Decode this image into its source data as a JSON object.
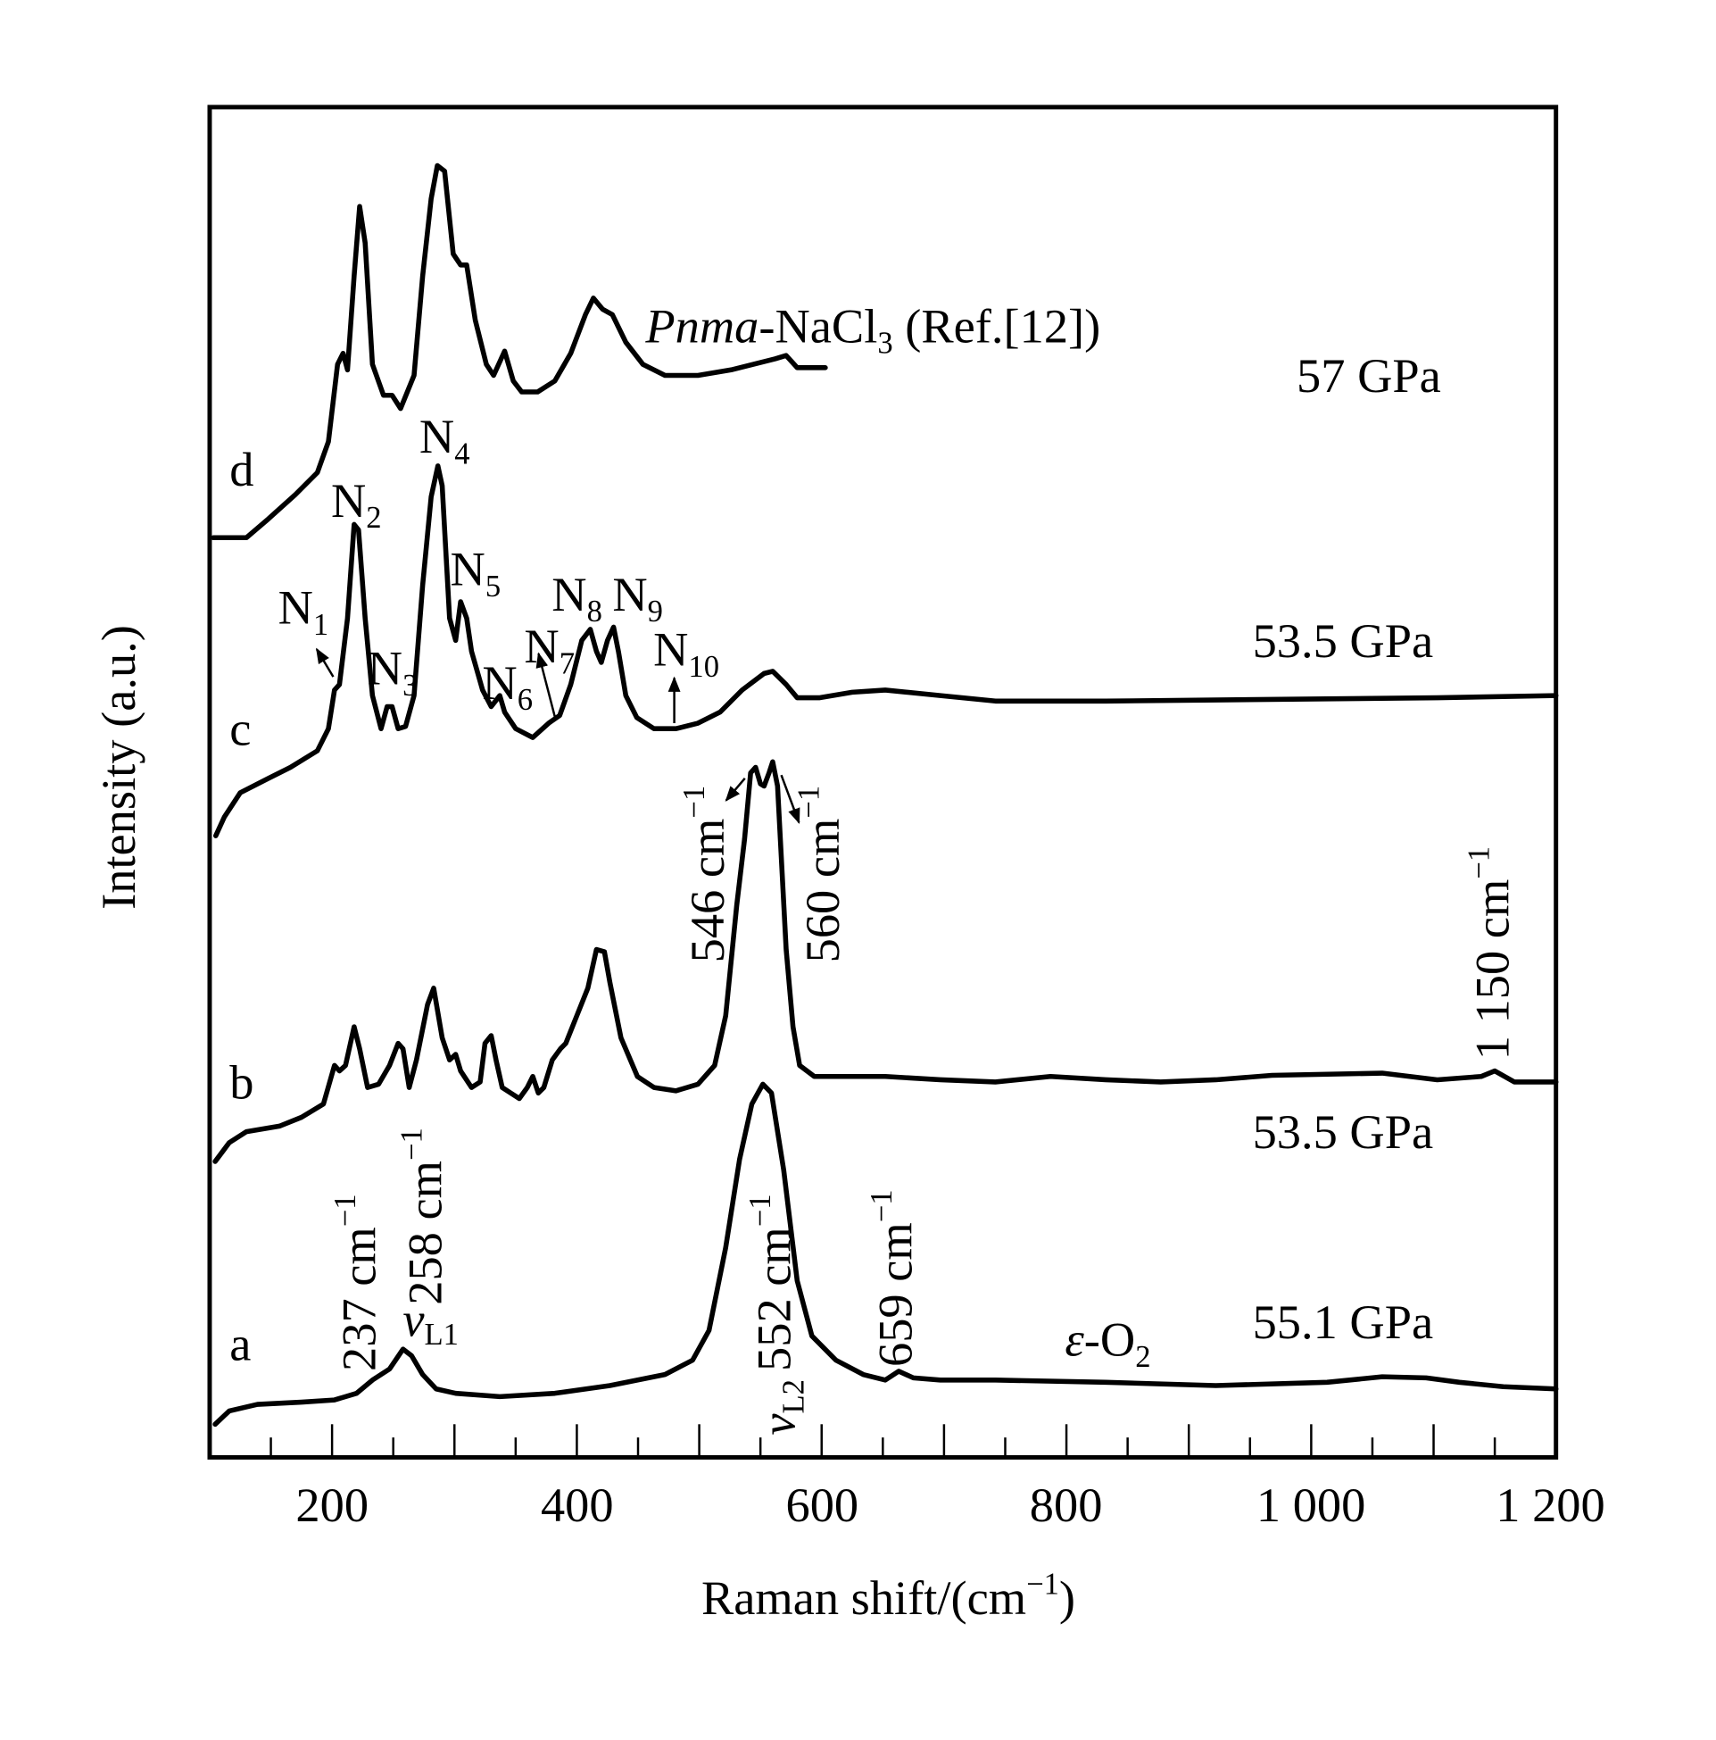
{
  "chart_data": {
    "type": "line",
    "title": "",
    "xlabel": {
      "main": "Raman shift/(cm",
      "sup": "−1",
      "end": ")"
    },
    "ylabel": "Intensity (a.u.)",
    "xlim": [
      100,
      1200
    ],
    "ylim": [
      0,
      122.3
    ],
    "x_ticks": [
      200,
      400,
      600,
      800,
      1000,
      1200
    ],
    "x_tick_labels": [
      "200",
      "400",
      "600",
      "800",
      "1 000",
      "1 200"
    ],
    "x_minor_step": 50,
    "grid": false,
    "line_color": "#000000",
    "series": [
      {
        "label": "d",
        "pressure": "57 GPa",
        "points": [
          [
            103,
            83.3
          ],
          [
            130,
            83.3
          ],
          [
            148,
            85
          ],
          [
            170,
            87.2
          ],
          [
            188,
            89.2
          ],
          [
            197,
            92
          ],
          [
            204.5,
            99
          ],
          [
            209,
            100
          ],
          [
            212.6,
            98.5
          ],
          [
            218,
            107
          ],
          [
            222.5,
            113.3
          ],
          [
            227,
            110
          ],
          [
            233,
            99
          ],
          [
            242,
            96.2
          ],
          [
            249,
            96.2
          ],
          [
            256,
            95
          ],
          [
            267,
            98
          ],
          [
            274,
            107
          ],
          [
            281,
            114
          ],
          [
            286,
            117
          ],
          [
            292,
            116.5
          ],
          [
            299,
            109
          ],
          [
            305,
            108
          ],
          [
            310,
            108
          ],
          [
            317,
            103
          ],
          [
            326,
            99
          ],
          [
            332,
            98
          ],
          [
            341,
            100.2
          ],
          [
            348,
            97.5
          ],
          [
            355,
            96.5
          ],
          [
            368,
            96.5
          ],
          [
            382,
            97.5
          ],
          [
            395,
            100
          ],
          [
            407,
            103.5
          ],
          [
            413.5,
            105
          ],
          [
            421,
            104
          ],
          [
            429,
            103.5
          ],
          [
            440,
            101
          ],
          [
            454,
            99
          ],
          [
            472,
            98
          ],
          [
            499,
            98
          ],
          [
            526,
            98.5
          ],
          [
            562,
            99.5
          ],
          [
            571,
            99.8
          ],
          [
            580,
            98.7
          ],
          [
            603,
            98.7
          ]
        ]
      },
      {
        "label": "c",
        "pressure": "53.5 GPa",
        "points": [
          [
            105,
            56.3
          ],
          [
            112,
            58
          ],
          [
            125,
            60.2
          ],
          [
            148,
            61.5
          ],
          [
            166,
            62.5
          ],
          [
            188,
            64
          ],
          [
            197,
            66
          ],
          [
            202,
            69.5
          ],
          [
            206,
            70
          ],
          [
            212.6,
            76
          ],
          [
            218,
            84.5
          ],
          [
            221.6,
            84
          ],
          [
            227,
            76
          ],
          [
            233,
            69
          ],
          [
            240,
            66
          ],
          [
            245,
            68
          ],
          [
            249,
            68
          ],
          [
            254,
            66
          ],
          [
            260,
            66.2
          ],
          [
            267,
            69
          ],
          [
            274,
            79
          ],
          [
            281,
            87
          ],
          [
            286.5,
            89.8
          ],
          [
            290,
            88
          ],
          [
            296,
            76
          ],
          [
            301,
            74
          ],
          [
            305,
            77.5
          ],
          [
            310,
            76
          ],
          [
            314,
            73
          ],
          [
            323,
            69.5
          ],
          [
            330,
            68
          ],
          [
            337,
            69
          ],
          [
            341,
            67.5
          ],
          [
            350,
            66
          ],
          [
            364,
            65.2
          ],
          [
            377,
            66.5
          ],
          [
            386,
            67.2
          ],
          [
            395,
            70
          ],
          [
            404,
            74
          ],
          [
            411,
            75
          ],
          [
            416,
            73
          ],
          [
            420,
            72
          ],
          [
            425,
            74
          ],
          [
            430,
            75.2
          ],
          [
            434,
            73
          ],
          [
            440,
            69
          ],
          [
            449,
            67
          ],
          [
            463,
            66
          ],
          [
            481,
            66
          ],
          [
            499,
            66.5
          ],
          [
            517,
            67.5
          ],
          [
            535,
            69.5
          ],
          [
            553,
            71
          ],
          [
            560,
            71.2
          ],
          [
            571,
            70
          ],
          [
            580,
            68.8
          ],
          [
            598,
            68.8
          ],
          [
            625,
            69.3
          ],
          [
            652,
            69.5
          ],
          [
            697,
            69
          ],
          [
            742,
            68.5
          ],
          [
            832,
            68.5
          ],
          [
            922,
            68.6
          ],
          [
            1012,
            68.7
          ],
          [
            1103,
            68.8
          ],
          [
            1200,
            69
          ]
        ]
      },
      {
        "label": "b",
        "pressure": "53.5 GPa",
        "points": [
          [
            104.5,
            26.8
          ],
          [
            116,
            28.5
          ],
          [
            130,
            29.5
          ],
          [
            157,
            30
          ],
          [
            175,
            30.8
          ],
          [
            193,
            32
          ],
          [
            202,
            35.5
          ],
          [
            206,
            35
          ],
          [
            211,
            35.5
          ],
          [
            218,
            39
          ],
          [
            222.5,
            37
          ],
          [
            229,
            33.5
          ],
          [
            238,
            33.8
          ],
          [
            247,
            35.5
          ],
          [
            254,
            37.5
          ],
          [
            258,
            37
          ],
          [
            263,
            33.5
          ],
          [
            269,
            36
          ],
          [
            278,
            41
          ],
          [
            283,
            42.5
          ],
          [
            290,
            38
          ],
          [
            296,
            36
          ],
          [
            301,
            36.5
          ],
          [
            305,
            35
          ],
          [
            314,
            33.5
          ],
          [
            321,
            34
          ],
          [
            325,
            37.5
          ],
          [
            330,
            38.2
          ],
          [
            334,
            36
          ],
          [
            339,
            33.5
          ],
          [
            346,
            33
          ],
          [
            353,
            32.5
          ],
          [
            359.5,
            33.5
          ],
          [
            364,
            34.5
          ],
          [
            368.5,
            33
          ],
          [
            373,
            33.5
          ],
          [
            380,
            36
          ],
          [
            386.5,
            37
          ],
          [
            391,
            37.5
          ],
          [
            400,
            40
          ],
          [
            409,
            42.5
          ],
          [
            416,
            46
          ],
          [
            422.5,
            45.8
          ],
          [
            427,
            43
          ],
          [
            436,
            38
          ],
          [
            449.5,
            34.5
          ],
          [
            463,
            33.5
          ],
          [
            481,
            33.2
          ],
          [
            499,
            33.8
          ],
          [
            512.6,
            35.5
          ],
          [
            521.6,
            40
          ],
          [
            530.6,
            50
          ],
          [
            537,
            56
          ],
          [
            542,
            62
          ],
          [
            546,
            62.5
          ],
          [
            550,
            61
          ],
          [
            553,
            60.8
          ],
          [
            557,
            62
          ],
          [
            560,
            63
          ],
          [
            564,
            60.8
          ],
          [
            571,
            46
          ],
          [
            576.6,
            39
          ],
          [
            582,
            35.5
          ],
          [
            594,
            34.5
          ],
          [
            616,
            34.5
          ],
          [
            652,
            34.5
          ],
          [
            697,
            34.2
          ],
          [
            742,
            34
          ],
          [
            787,
            34.5
          ],
          [
            832,
            34.2
          ],
          [
            877,
            34
          ],
          [
            922,
            34.2
          ],
          [
            968,
            34.6
          ],
          [
            1058,
            34.8
          ],
          [
            1103,
            34.2
          ],
          [
            1139,
            34.5
          ],
          [
            1150,
            35
          ],
          [
            1166,
            34
          ],
          [
            1200,
            34
          ]
        ]
      },
      {
        "label": "a",
        "pressure": "55.1 GPa",
        "points": [
          [
            104.5,
            3
          ],
          [
            116,
            4.2
          ],
          [
            139,
            4.8
          ],
          [
            175,
            5
          ],
          [
            202,
            5.2
          ],
          [
            220,
            5.8
          ],
          [
            233,
            7
          ],
          [
            247,
            8
          ],
          [
            258,
            9.8
          ],
          [
            265,
            9.2
          ],
          [
            274,
            7.5
          ],
          [
            285,
            6.2
          ],
          [
            301,
            5.8
          ],
          [
            337,
            5.5
          ],
          [
            382,
            5.8
          ],
          [
            427,
            6.5
          ],
          [
            472,
            7.5
          ],
          [
            494.6,
            8.8
          ],
          [
            508,
            11.5
          ],
          [
            521.6,
            19
          ],
          [
            533,
            27
          ],
          [
            543,
            32
          ],
          [
            552,
            33.8
          ],
          [
            559,
            33
          ],
          [
            569,
            26
          ],
          [
            580,
            16
          ],
          [
            592,
            11
          ],
          [
            611.7,
            8.8
          ],
          [
            634,
            7.5
          ],
          [
            652,
            7
          ],
          [
            663,
            7.8
          ],
          [
            675,
            7.2
          ],
          [
            697,
            7
          ],
          [
            742,
            7
          ],
          [
            832,
            6.8
          ],
          [
            922,
            6.5
          ],
          [
            1013,
            6.8
          ],
          [
            1058,
            7.3
          ],
          [
            1094,
            7.2
          ],
          [
            1121,
            6.8
          ],
          [
            1157,
            6.4
          ],
          [
            1200,
            6.2
          ]
        ]
      }
    ],
    "annotations": {
      "ref": {
        "italic": "Pnma",
        "main": "-NaCl",
        "sub": "3",
        "end": " (Ref.[12])"
      },
      "pressures": [
        "57 GPa",
        "53.5 GPa",
        "53.5 GPa",
        "55.1 GPa"
      ],
      "curve_letters": [
        "d",
        "c",
        "b",
        "a"
      ],
      "peaks_c": [
        "1",
        "2",
        "3",
        "4",
        "5",
        "6",
        "7",
        "8",
        "9",
        "10"
      ],
      "peak_letter": "N",
      "b_peaks": [
        {
          "main": "546 cm",
          "sup": "−1"
        },
        {
          "main": "560 cm",
          "sup": "−1"
        },
        {
          "main": "1 150 cm",
          "sup": "−1"
        }
      ],
      "a_peaks": [
        {
          "main": "237 cm",
          "sup": "−1"
        },
        {
          "main": "258 cm",
          "sup": "−1"
        },
        {
          "main": "552 cm",
          "sup": "−1"
        },
        {
          "main": "659 cm",
          "sup": "−1"
        }
      ],
      "nu_l1": {
        "nu": "ν",
        "sub": "L1"
      },
      "nu_l2": {
        "nu": "ν",
        "sub": "L2"
      },
      "eps": {
        "e": "ε",
        "main": "-O",
        "sub": "2"
      }
    }
  }
}
